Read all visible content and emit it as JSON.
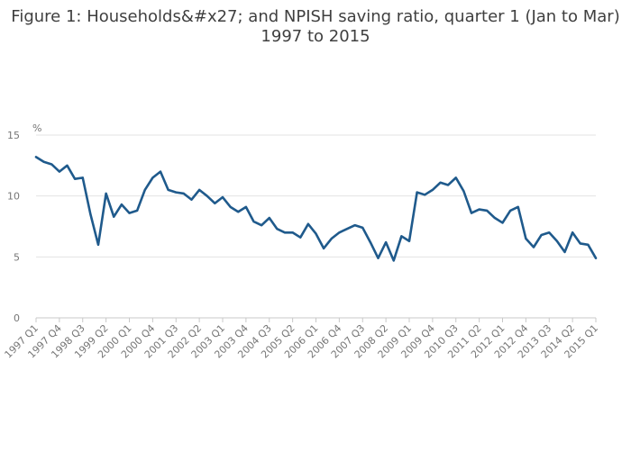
{
  "title_line1": "Figure 1: Households&#x27; and NPISH saving ratio, quarter 1 (Jan to Mar)",
  "title_line2": "1997 to 2015",
  "colors": {
    "line": "#1f5a8c",
    "grid": "#e3e3e3",
    "axis": "#c8c8c8",
    "text": "#767676"
  },
  "chart_data": {
    "type": "line",
    "title": "Figure 1: Households&#x27; and NPISH saving ratio, quarter 1 (Jan to Mar) 1997 to 2015",
    "ylabel": "%",
    "ylim": [
      0,
      15
    ],
    "yticks": [
      0,
      5,
      10,
      15
    ],
    "grid": true,
    "x_tick_labels": [
      "1997 Q1",
      "1997 Q4",
      "1998 Q3",
      "1999 Q2",
      "2000 Q1",
      "2000 Q4",
      "2001 Q3",
      "2002 Q2",
      "2003 Q1",
      "2003 Q4",
      "2004 Q3",
      "2005 Q2",
      "2006 Q1",
      "2006 Q4",
      "2007 Q3",
      "2008 Q2",
      "2009 Q1",
      "2009 Q4",
      "2010 Q3",
      "2011 Q2",
      "2012 Q1",
      "2012 Q4",
      "2013 Q3",
      "2014 Q2",
      "2015 Q1"
    ],
    "x": [
      "1997 Q1",
      "1997 Q2",
      "1997 Q3",
      "1997 Q4",
      "1998 Q1",
      "1998 Q2",
      "1998 Q3",
      "1998 Q4",
      "1999 Q1",
      "1999 Q2",
      "1999 Q3",
      "1999 Q4",
      "2000 Q1",
      "2000 Q2",
      "2000 Q3",
      "2000 Q4",
      "2001 Q1",
      "2001 Q2",
      "2001 Q3",
      "2001 Q4",
      "2002 Q1",
      "2002 Q2",
      "2002 Q3",
      "2002 Q4",
      "2003 Q1",
      "2003 Q2",
      "2003 Q3",
      "2003 Q4",
      "2004 Q1",
      "2004 Q2",
      "2004 Q3",
      "2004 Q4",
      "2005 Q1",
      "2005 Q2",
      "2005 Q3",
      "2005 Q4",
      "2006 Q1",
      "2006 Q2",
      "2006 Q3",
      "2006 Q4",
      "2007 Q1",
      "2007 Q2",
      "2007 Q3",
      "2007 Q4",
      "2008 Q1",
      "2008 Q2",
      "2008 Q3",
      "2008 Q4",
      "2009 Q1",
      "2009 Q2",
      "2009 Q3",
      "2009 Q4",
      "2010 Q1",
      "2010 Q2",
      "2010 Q3",
      "2010 Q4",
      "2011 Q1",
      "2011 Q2",
      "2011 Q3",
      "2011 Q4",
      "2012 Q1",
      "2012 Q2",
      "2012 Q3",
      "2012 Q4",
      "2013 Q1",
      "2013 Q2",
      "2013 Q3",
      "2013 Q4",
      "2014 Q1",
      "2014 Q2",
      "2014 Q3",
      "2014 Q4",
      "2015 Q1"
    ],
    "values": [
      13.2,
      12.8,
      12.6,
      12.0,
      12.5,
      11.4,
      11.5,
      8.5,
      6.0,
      10.2,
      8.3,
      9.3,
      8.6,
      8.8,
      10.5,
      11.5,
      12.0,
      10.5,
      10.3,
      10.2,
      9.7,
      10.5,
      10.0,
      9.4,
      9.9,
      9.1,
      8.7,
      9.1,
      7.9,
      7.6,
      8.2,
      7.3,
      7.0,
      7.0,
      6.6,
      7.7,
      6.9,
      5.7,
      6.5,
      7.0,
      7.3,
      7.6,
      7.4,
      6.2,
      4.9,
      6.2,
      4.7,
      6.7,
      6.3,
      10.3,
      10.1,
      10.5,
      11.1,
      10.9,
      11.5,
      10.4,
      8.6,
      8.9,
      8.8,
      8.2,
      7.8,
      8.8,
      9.1,
      6.5,
      5.8,
      6.8,
      7.0,
      6.3,
      5.4,
      7.0,
      6.1,
      6.0,
      4.9
    ]
  }
}
